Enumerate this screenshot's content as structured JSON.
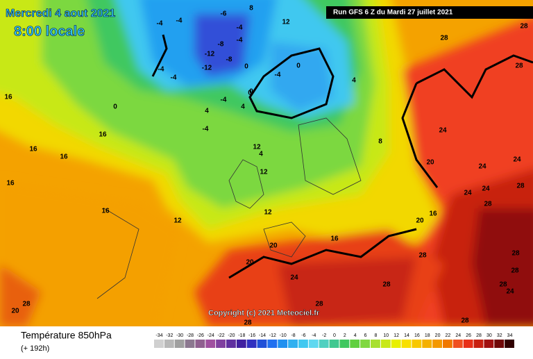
{
  "header": {
    "date": "Mercredi 4 aout 2021",
    "time": "8:00 locale",
    "run": "Run GFS 6 Z du Mardi 27 juillet 2021"
  },
  "copyright": "Copyright (c) 2021 Meteociel.fr",
  "footer": {
    "title": "Température 850hPa",
    "lead": "(+ 192h)"
  },
  "legend": {
    "labels": [
      "-34",
      "-32",
      "-30",
      "-28",
      "-26",
      "-24",
      "-22",
      "-20",
      "-18",
      "-16",
      "-14",
      "-12",
      "-10",
      "-8",
      "-6",
      "-4",
      "-2",
      "0",
      "2",
      "4",
      "6",
      "8",
      "10",
      "12",
      "14",
      "16",
      "18",
      "20",
      "22",
      "24",
      "26",
      "28",
      "30",
      "32",
      "34"
    ]
  },
  "map": {
    "labels": [
      "-4",
      "-4",
      "-6",
      "-4",
      "-8",
      "-12",
      "-12",
      "-8",
      "-4",
      "-4",
      "-4",
      "-4",
      "0",
      "0",
      "0",
      "-4",
      "0",
      "-4",
      "8",
      "4",
      "0",
      "4",
      "4",
      "12",
      "8",
      "4",
      "8",
      "12",
      "12",
      "12",
      "16",
      "16",
      "16",
      "16",
      "16",
      "12",
      "16",
      "20",
      "20",
      "20",
      "24",
      "24",
      "24",
      "24",
      "24",
      "24",
      "28",
      "28",
      "28",
      "28",
      "28",
      "28",
      "28",
      "28",
      "28",
      "28",
      "20",
      "20",
      "16",
      "16",
      "24",
      "28",
      "28",
      "28",
      "28"
    ]
  }
}
